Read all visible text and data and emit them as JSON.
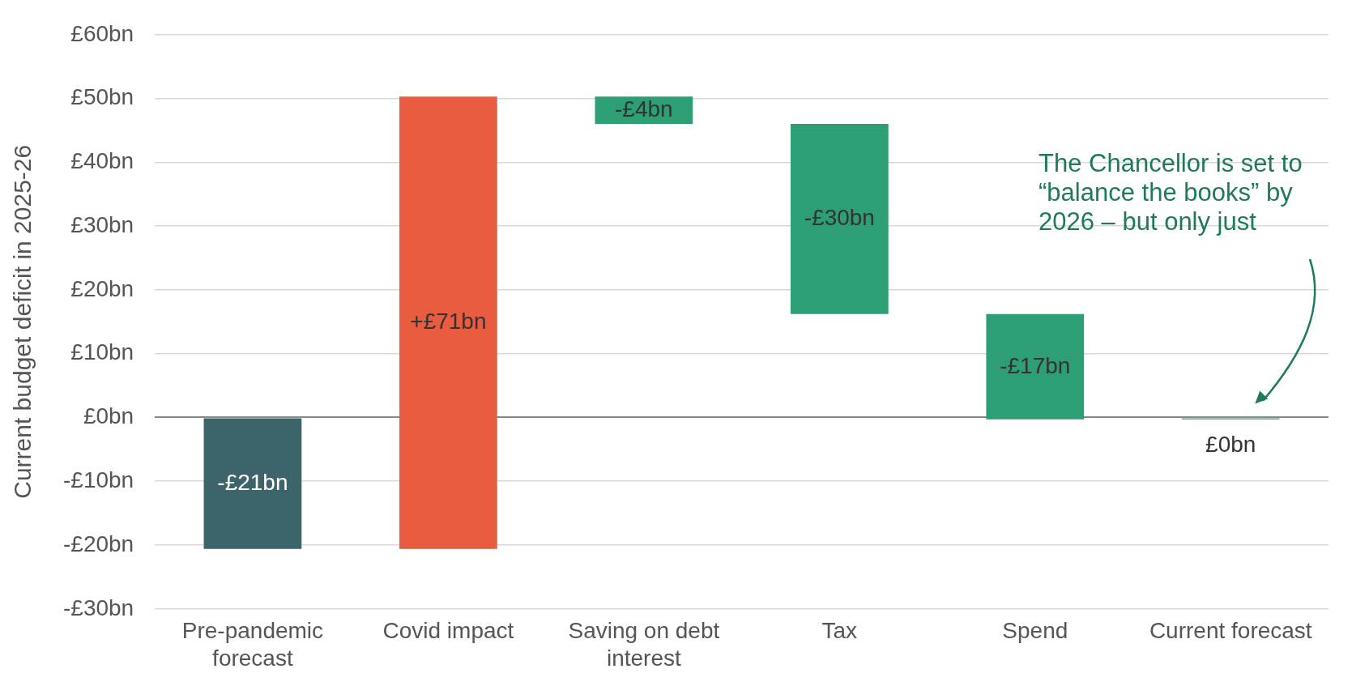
{
  "chart_data": {
    "type": "bar",
    "ylabel": "Current budget deficit in 2025-26",
    "categories": [
      "Pre-pandemic forecast",
      "Covid impact",
      "Saving on debt interest",
      "Tax",
      "Spend",
      "Current forecast"
    ],
    "base": [
      0,
      -20.6,
      50.3,
      46,
      16.2,
      0
    ],
    "values": [
      -20.6,
      70.9,
      -4.3,
      -29.8,
      -16.5,
      -0.3
    ],
    "colors": [
      "#3d636b",
      "#e95c40",
      "#2e9e74",
      "#2e9e74",
      "#2e9e74",
      "#2e9e74"
    ],
    "value_labels": [
      "-£21bn",
      "+£71bn",
      "-£4bn",
      "-£30bn",
      "-£17bn",
      "£0bn"
    ],
    "ylim": [
      -30,
      60
    ],
    "yticks": [
      {
        "value": -30,
        "label": "-£30bn"
      },
      {
        "value": -20,
        "label": "-£20bn"
      },
      {
        "value": -10,
        "label": "-£10bn"
      },
      {
        "value": 0,
        "label": "£0bn"
      },
      {
        "value": 10,
        "label": "£10bn"
      },
      {
        "value": 20,
        "label": "£20bn"
      },
      {
        "value": 30,
        "label": "£30bn"
      },
      {
        "value": 40,
        "label": "£40bn"
      },
      {
        "value": 50,
        "label": "£50bn"
      },
      {
        "value": 60,
        "label": "£60bn"
      }
    ],
    "grid": "y",
    "legend": false,
    "annotations": [
      "The Chancellor is set to “balance the books” by 2026 – but only just"
    ]
  }
}
